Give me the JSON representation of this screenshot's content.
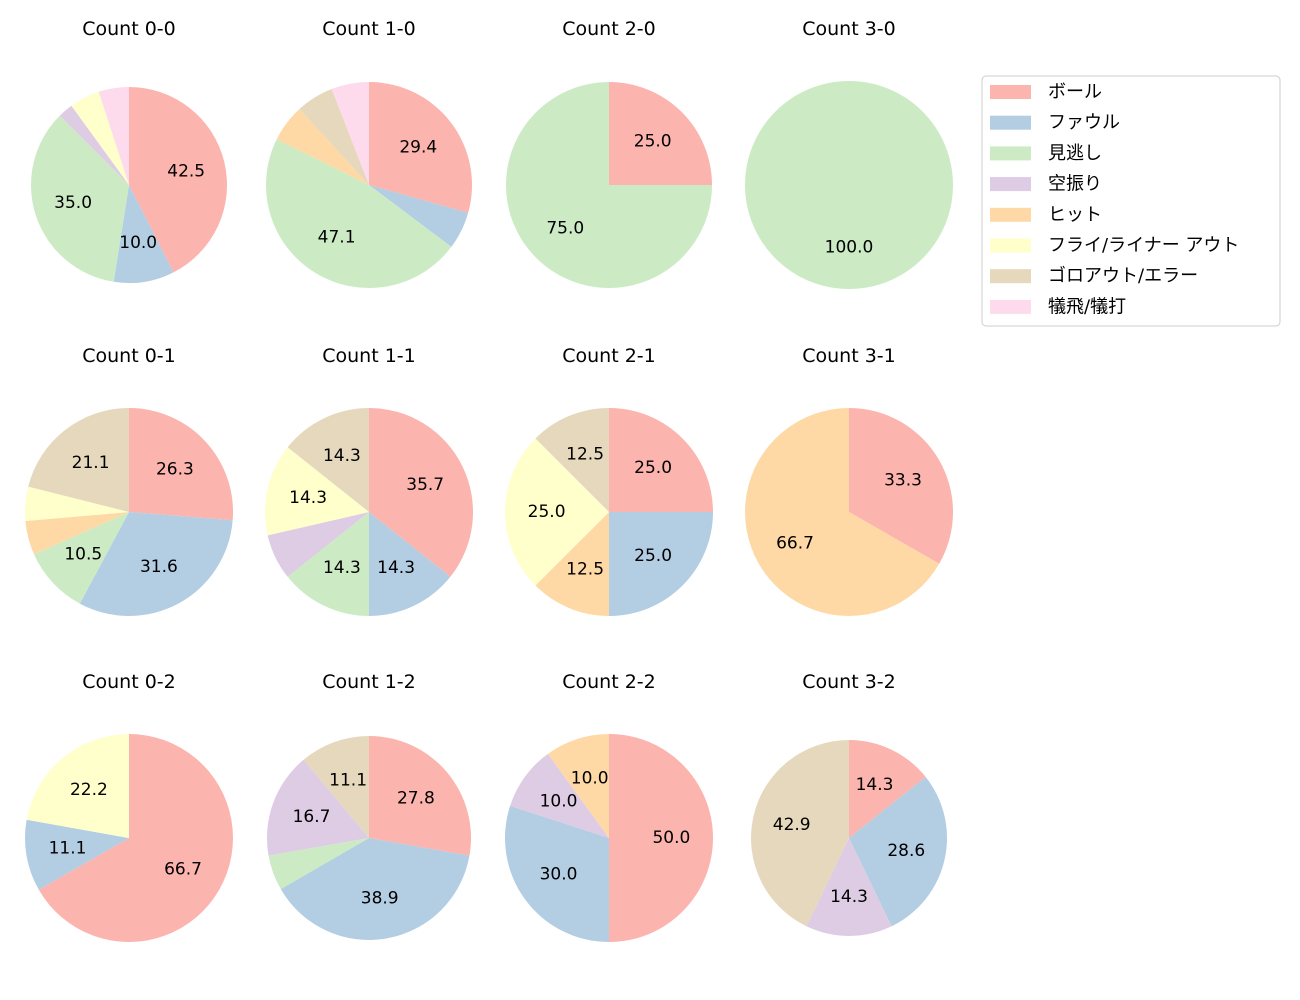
{
  "chart_data": {
    "type": "pie",
    "categories": [
      "ボール",
      "ファウル",
      "見逃し",
      "空振り",
      "ヒット",
      "フライ/ライナー アウト",
      "ゴロアウト/エラー",
      "犠飛/犠打"
    ],
    "colors": [
      "#fbb4ae",
      "#b3cde3",
      "#ccebc5",
      "#decbe4",
      "#fed9a6",
      "#ffffcc",
      "#e5d8bd",
      "#fddaec"
    ],
    "legend_placement": "top-right",
    "charts": [
      {
        "title": "Count 0-0",
        "values": [
          42.5,
          10.0,
          35.0,
          2.5,
          0,
          5.0,
          0,
          5.0
        ],
        "labels": [
          "42.5",
          "10.0",
          "35.0",
          "",
          "",
          "",
          "",
          ""
        ]
      },
      {
        "title": "Count 1-0",
        "values": [
          29.4,
          5.9,
          47.1,
          0,
          5.9,
          0,
          5.9,
          5.9
        ],
        "labels": [
          "29.4",
          "",
          "47.1",
          "",
          "",
          "",
          "",
          ""
        ]
      },
      {
        "title": "Count 2-0",
        "values": [
          25.0,
          0,
          75.0,
          0,
          0,
          0,
          0,
          0
        ],
        "labels": [
          "25.0",
          "",
          "75.0",
          "",
          "",
          "",
          "",
          ""
        ]
      },
      {
        "title": "Count 3-0",
        "values": [
          0,
          0,
          100.0,
          0,
          0,
          0,
          0,
          0
        ],
        "labels": [
          "",
          "",
          "100.0",
          "",
          "",
          "",
          "",
          ""
        ]
      },
      {
        "title": "Count 0-1",
        "values": [
          26.3,
          31.6,
          10.5,
          0,
          5.3,
          5.3,
          21.1,
          0
        ],
        "labels": [
          "26.3",
          "31.6",
          "10.5",
          "",
          "",
          "",
          "21.1",
          ""
        ]
      },
      {
        "title": "Count 1-1",
        "values": [
          35.7,
          14.3,
          14.3,
          7.1,
          0,
          14.3,
          14.3,
          0
        ],
        "labels": [
          "35.7",
          "14.3",
          "14.3",
          "",
          "",
          "14.3",
          "14.3",
          ""
        ]
      },
      {
        "title": "Count 2-1",
        "values": [
          25.0,
          25.0,
          0,
          0,
          12.5,
          25.0,
          12.5,
          0
        ],
        "labels": [
          "25.0",
          "25.0",
          "",
          "",
          "12.5",
          "25.0",
          "12.5",
          ""
        ]
      },
      {
        "title": "Count 3-1",
        "values": [
          33.3,
          0,
          0,
          0,
          66.7,
          0,
          0,
          0
        ],
        "labels": [
          "33.3",
          "",
          "",
          "",
          "66.7",
          "",
          "",
          ""
        ]
      },
      {
        "title": "Count 0-2",
        "values": [
          66.7,
          11.1,
          0,
          0,
          0,
          22.2,
          0,
          0
        ],
        "labels": [
          "66.7",
          "11.1",
          "",
          "",
          "",
          "22.2",
          "",
          ""
        ]
      },
      {
        "title": "Count 1-2",
        "values": [
          27.8,
          38.9,
          5.6,
          16.7,
          0,
          0,
          11.1,
          0
        ],
        "labels": [
          "27.8",
          "38.9",
          "",
          "16.7",
          "",
          "",
          "11.1",
          ""
        ]
      },
      {
        "title": "Count 2-2",
        "values": [
          50.0,
          30.0,
          0,
          10.0,
          10.0,
          0,
          0,
          0
        ],
        "labels": [
          "50.0",
          "30.0",
          "",
          "10.0",
          "10.0",
          "",
          "",
          ""
        ]
      },
      {
        "title": "Count 3-2",
        "values": [
          14.3,
          28.6,
          0,
          14.3,
          0,
          0,
          42.9,
          0
        ],
        "labels": [
          "14.3",
          "28.6",
          "",
          "14.3",
          "",
          "",
          "42.9",
          ""
        ]
      }
    ]
  }
}
